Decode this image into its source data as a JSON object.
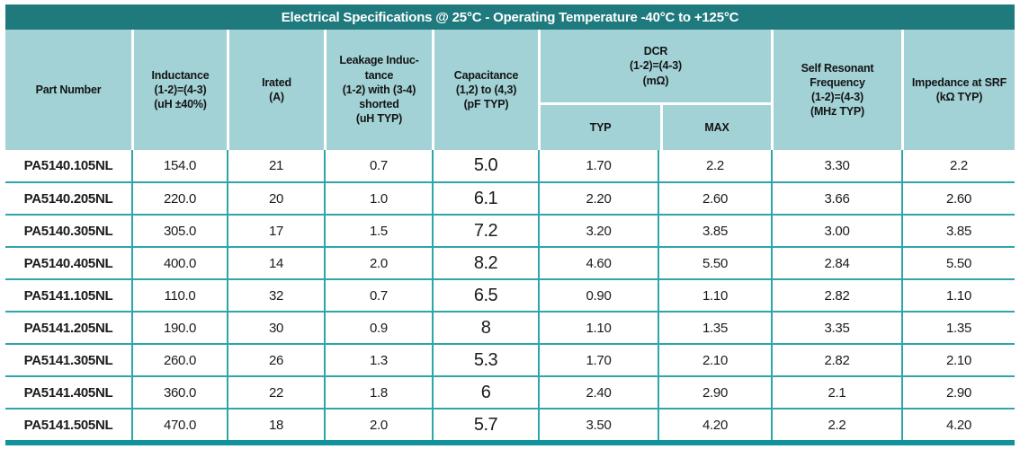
{
  "title": "Electrical Specifications @ 25°C - Operating Temperature -40°C to +125°C",
  "colors": {
    "title_bar_bg": "#1f7a7e",
    "title_text": "#ffffff",
    "header_bg": "#a2d2d6",
    "grid_line": "#2ca6ac",
    "bottom_bar": "#12929c",
    "body_text": "#1b1b1b"
  },
  "table": {
    "columns": [
      {
        "key": "part_number",
        "label": "Part Number"
      },
      {
        "key": "inductance",
        "label": "Inductance\n(1-2)=(4-3)\n(uH ±40%)"
      },
      {
        "key": "irated",
        "label": "Irated\n(A)"
      },
      {
        "key": "leakage_inductance",
        "label": "Leakage Induc-\ntance\n(1-2) with (3-4)\nshorted\n(uH TYP)"
      },
      {
        "key": "capacitance",
        "label": "Capacitance\n(1,2) to (4,3)\n(pF TYP)"
      },
      {
        "key": "dcr",
        "label": "DCR\n(1-2)=(4-3)\n(mΩ)",
        "subcolumns": [
          "TYP",
          "MAX"
        ]
      },
      {
        "key": "self_resonant_frequency",
        "label": "Self Resonant\nFrequency\n(1-2)=(4-3)\n(MHz TYP)"
      },
      {
        "key": "impedance_at_srf",
        "label": "Impedance at SRF\n(kΩ TYP)"
      }
    ],
    "rows": [
      [
        "PA5140.105NL",
        "154.0",
        "21",
        "0.7",
        "5.0",
        "1.70",
        "2.2",
        "3.30",
        "2.2"
      ],
      [
        "PA5140.205NL",
        "220.0",
        "20",
        "1.0",
        "6.1",
        "2.20",
        "2.60",
        "3.66",
        "2.60"
      ],
      [
        "PA5140.305NL",
        "305.0",
        "17",
        "1.5",
        "7.2",
        "3.20",
        "3.85",
        "3.00",
        "3.85"
      ],
      [
        "PA5140.405NL",
        "400.0",
        "14",
        "2.0",
        "8.2",
        "4.60",
        "5.50",
        "2.84",
        "5.50"
      ],
      [
        "PA5141.105NL",
        "110.0",
        "32",
        "0.7",
        "6.5",
        "0.90",
        "1.10",
        "2.82",
        "1.10"
      ],
      [
        "PA5141.205NL",
        "190.0",
        "30",
        "0.9",
        "8",
        "1.10",
        "1.35",
        "3.35",
        "1.35"
      ],
      [
        "PA5141.305NL",
        "260.0",
        "26",
        "1.3",
        "5.3",
        "1.70",
        "2.10",
        "2.82",
        "2.10"
      ],
      [
        "PA5141.405NL",
        "360.0",
        "22",
        "1.8",
        "6",
        "2.40",
        "2.90",
        "2.1",
        "2.90"
      ],
      [
        "PA5141.505NL",
        "470.0",
        "18",
        "2.0",
        "5.7",
        "3.50",
        "4.20",
        "2.2",
        "4.20"
      ]
    ]
  }
}
